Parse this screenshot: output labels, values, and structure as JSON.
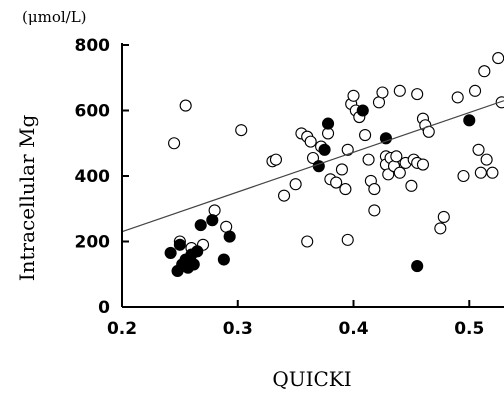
{
  "chart_data": {
    "type": "scatter",
    "title": "",
    "xlabel": "QUICKI",
    "ylabel": "Intracellular Mg",
    "y_unit": "(μmol/L)",
    "xlim": [
      0.2,
      0.53
    ],
    "ylim": [
      0,
      800
    ],
    "x_ticks": [
      0.2,
      0.3,
      0.4,
      0.5
    ],
    "x_tick_labels": [
      "0.2",
      "0.3",
      "0.4",
      "0.5"
    ],
    "y_ticks": [
      0,
      200,
      400,
      600,
      800
    ],
    "y_tick_labels": [
      "0",
      "200",
      "400",
      "600",
      "800"
    ],
    "grid": false,
    "legend": "none",
    "trend_line": {
      "x": [
        0.2,
        0.53
      ],
      "y": [
        230,
        630
      ]
    },
    "series": [
      {
        "marker": "open-circle",
        "color": "#000000",
        "points": [
          [
            0.245,
            500
          ],
          [
            0.255,
            615
          ],
          [
            0.25,
            200
          ],
          [
            0.26,
            180
          ],
          [
            0.27,
            190
          ],
          [
            0.28,
            295
          ],
          [
            0.29,
            245
          ],
          [
            0.303,
            540
          ],
          [
            0.33,
            445
          ],
          [
            0.333,
            450
          ],
          [
            0.34,
            340
          ],
          [
            0.35,
            375
          ],
          [
            0.355,
            530
          ],
          [
            0.36,
            520
          ],
          [
            0.36,
            200
          ],
          [
            0.363,
            505
          ],
          [
            0.365,
            455
          ],
          [
            0.372,
            490
          ],
          [
            0.378,
            530
          ],
          [
            0.38,
            390
          ],
          [
            0.385,
            380
          ],
          [
            0.39,
            420
          ],
          [
            0.393,
            360
          ],
          [
            0.395,
            205
          ],
          [
            0.395,
            480
          ],
          [
            0.398,
            620
          ],
          [
            0.4,
            645
          ],
          [
            0.402,
            600
          ],
          [
            0.405,
            580
          ],
          [
            0.41,
            525
          ],
          [
            0.413,
            450
          ],
          [
            0.415,
            385
          ],
          [
            0.418,
            295
          ],
          [
            0.418,
            360
          ],
          [
            0.422,
            625
          ],
          [
            0.425,
            655
          ],
          [
            0.428,
            460
          ],
          [
            0.428,
            435
          ],
          [
            0.43,
            405
          ],
          [
            0.432,
            455
          ],
          [
            0.435,
            430
          ],
          [
            0.437,
            460
          ],
          [
            0.44,
            660
          ],
          [
            0.44,
            410
          ],
          [
            0.445,
            440
          ],
          [
            0.45,
            370
          ],
          [
            0.452,
            450
          ],
          [
            0.455,
            440
          ],
          [
            0.455,
            650
          ],
          [
            0.46,
            575
          ],
          [
            0.46,
            435
          ],
          [
            0.462,
            555
          ],
          [
            0.465,
            535
          ],
          [
            0.475,
            240
          ],
          [
            0.478,
            275
          ],
          [
            0.49,
            640
          ],
          [
            0.495,
            400
          ],
          [
            0.505,
            660
          ],
          [
            0.508,
            480
          ],
          [
            0.51,
            410
          ],
          [
            0.513,
            720
          ],
          [
            0.515,
            450
          ],
          [
            0.52,
            410
          ],
          [
            0.525,
            760
          ],
          [
            0.528,
            625
          ]
        ]
      },
      {
        "marker": "filled-circle",
        "color": "#000000",
        "points": [
          [
            0.242,
            165
          ],
          [
            0.248,
            110
          ],
          [
            0.25,
            190
          ],
          [
            0.252,
            130
          ],
          [
            0.255,
            145
          ],
          [
            0.257,
            120
          ],
          [
            0.26,
            160
          ],
          [
            0.262,
            130
          ],
          [
            0.265,
            170
          ],
          [
            0.268,
            250
          ],
          [
            0.278,
            265
          ],
          [
            0.288,
            145
          ],
          [
            0.293,
            215
          ],
          [
            0.37,
            430
          ],
          [
            0.375,
            480
          ],
          [
            0.378,
            560
          ],
          [
            0.408,
            600
          ],
          [
            0.428,
            515
          ],
          [
            0.455,
            125
          ],
          [
            0.5,
            570
          ]
        ]
      }
    ]
  }
}
